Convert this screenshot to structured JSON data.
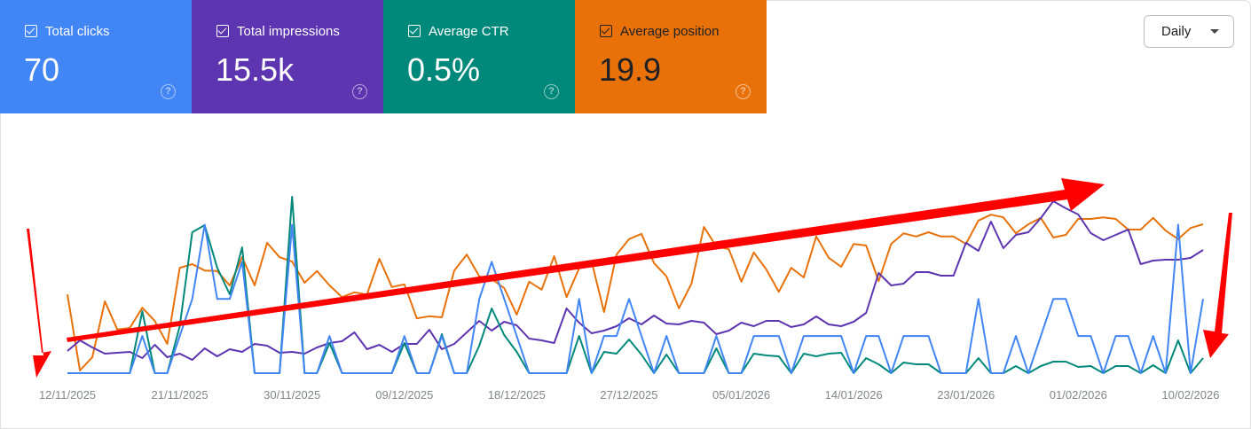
{
  "cards": [
    {
      "label": "Total clicks",
      "value": "70",
      "color": "#4285f4",
      "checked": true,
      "help_icon": "help-circle-icon"
    },
    {
      "label": "Total impressions",
      "value": "15.5k",
      "color": "#5e35b1",
      "checked": true,
      "help_icon": "help-circle-icon"
    },
    {
      "label": "Average CTR",
      "value": "0.5%",
      "color": "#00897b",
      "checked": true,
      "help_icon": "help-circle-icon"
    },
    {
      "label": "Average position",
      "value": "19.9",
      "color": "#e8710a",
      "checked": true,
      "help_icon": "help-circle-icon"
    }
  ],
  "help_glyph": "?",
  "granularity": {
    "selected": "Daily"
  },
  "chart_data": {
    "type": "line",
    "title": "",
    "xlabel": "",
    "ylabel": "",
    "grid": false,
    "x_start": "12/11/2025",
    "x_count": 92,
    "tick_every": 9,
    "tick_labels": [
      "12/11/2025",
      "21/11/2025",
      "30/11/2025",
      "09/12/2025",
      "18/12/2025",
      "27/12/2025",
      "05/01/2026",
      "14/01/2026",
      "23/01/2026",
      "01/02/2026",
      "10/02/2026"
    ],
    "series": [
      {
        "name": "Total clicks",
        "color": "#4285f4",
        "ylim": [
          0,
          4.8
        ],
        "inverted": false,
        "values": [
          0,
          0,
          0,
          0,
          0,
          0,
          1,
          0,
          0,
          1,
          2,
          4,
          2,
          2,
          3,
          0,
          0,
          0,
          4,
          0,
          0,
          1,
          0,
          0,
          0,
          0,
          0,
          1,
          0,
          0,
          1,
          0,
          0,
          2,
          3,
          2,
          1,
          0,
          0,
          0,
          0,
          2,
          0,
          1,
          1,
          2,
          1,
          0,
          1,
          0,
          0,
          0,
          1,
          0,
          0,
          1,
          1,
          1,
          0,
          1,
          1,
          1,
          1,
          0,
          1,
          1,
          0,
          1,
          1,
          1,
          0,
          0,
          0,
          2,
          0,
          0,
          1,
          0,
          1,
          2,
          2,
          1,
          1,
          0,
          1,
          1,
          0,
          1,
          0,
          4,
          0,
          2
        ]
      },
      {
        "name": "Total impressions",
        "color": "#5e35b1",
        "ylim": [
          0,
          402
        ],
        "inverted": false,
        "values": [
          50,
          74,
          58,
          44,
          46,
          48,
          34,
          64,
          36,
          44,
          30,
          56,
          38,
          54,
          48,
          66,
          62,
          46,
          48,
          44,
          58,
          68,
          72,
          92,
          54,
          64,
          48,
          66,
          66,
          98,
          54,
          66,
          92,
          118,
          96,
          116,
          108,
          78,
          74,
          68,
          146,
          114,
          90,
          96,
          106,
          124,
          110,
          130,
          112,
          110,
          118,
          114,
          88,
          96,
          114,
          106,
          118,
          118,
          104,
          110,
          128,
          110,
          106,
          116,
          136,
          226,
          198,
          202,
          228,
          228,
          220,
          220,
          294,
          276,
          342,
          282,
          312,
          318,
          350,
          388,
          372,
          358,
          316,
          300,
          312,
          324,
          246,
          254,
          256,
          256,
          260,
          278
        ]
      },
      {
        "name": "Average CTR",
        "color": "#00897b",
        "ylim": [
          0,
          10.05
        ],
        "inverted": false,
        "values": [
          0,
          0,
          0,
          0,
          0,
          0,
          3.5,
          0,
          0,
          2.65,
          7.95,
          8.35,
          5.95,
          4.45,
          7.1,
          0,
          0,
          0,
          9.95,
          0,
          0,
          1.7,
          0,
          0,
          0,
          0,
          0,
          1.7,
          0,
          0,
          2.2,
          0,
          0,
          1.55,
          3.65,
          2.15,
          1.2,
          0,
          0,
          0,
          0,
          2.1,
          0,
          1.2,
          1.1,
          1.9,
          1.05,
          0,
          1.05,
          0,
          0,
          0,
          1.4,
          0,
          0,
          1.1,
          1.0,
          0.95,
          0,
          1.1,
          0.95,
          1.1,
          1.15,
          0,
          0.85,
          0.5,
          0,
          0.6,
          0.5,
          0.5,
          0,
          0,
          0,
          0.85,
          0,
          0,
          0.4,
          0,
          0.4,
          0.65,
          0.65,
          0.35,
          0.4,
          0,
          0.4,
          0.4,
          0,
          0.45,
          0,
          1.85,
          0,
          0.85
        ]
      },
      {
        "name": "Average position",
        "color": "#e8710a",
        "ylim": [
          38.5,
          5
        ],
        "inverted": true,
        "values": [
          23.7,
          38.0,
          35.5,
          25.0,
          30.3,
          30.0,
          26.2,
          28.7,
          33.0,
          18.7,
          18.0,
          19.2,
          19.3,
          22.0,
          16.7,
          22.0,
          14.0,
          16.7,
          17.5,
          21.5,
          19.3,
          22.0,
          24.2,
          23.3,
          23.7,
          17.0,
          22.3,
          21.8,
          28.2,
          27.8,
          28.0,
          19.2,
          16.2,
          20.3,
          20.8,
          22.5,
          27.5,
          21.3,
          22.8,
          16.5,
          24.2,
          18.8,
          17.5,
          27.0,
          16.2,
          13.3,
          12.3,
          17.8,
          20.3,
          26.3,
          21.7,
          11.0,
          14.7,
          15.2,
          21.3,
          15.8,
          19.0,
          23.2,
          18.7,
          20.5,
          12.8,
          16.8,
          18.5,
          14.2,
          14.5,
          21.2,
          14.2,
          12.2,
          12.8,
          12.0,
          12.8,
          12.8,
          14.2,
          9.8,
          8.7,
          9.2,
          12.2,
          10.5,
          9.3,
          13.0,
          12.5,
          9.5,
          9.5,
          9.2,
          9.5,
          11.5,
          11.5,
          9.3,
          11.7,
          13.3,
          11.2,
          10.5
        ]
      }
    ],
    "annotations": [
      "red-arrow-trend-up",
      "red-arrow-down-left",
      "red-arrow-down-right"
    ]
  }
}
